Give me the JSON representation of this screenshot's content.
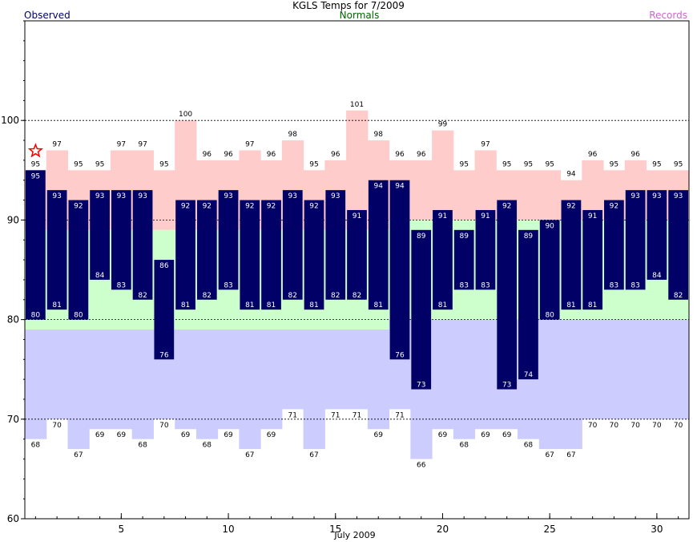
{
  "header": {
    "title": "KGLS Temps for 7/2009",
    "legend_observed": "Observed",
    "legend_normals": "Normals",
    "legend_records": "Records"
  },
  "colors": {
    "observed": "#000066",
    "normals": "#006600",
    "records": "#cc66cc",
    "record_band": "#ffcccc",
    "normal_band": "#ccffcc",
    "record_low_band": "#ccccff",
    "star": "#ff0000"
  },
  "chart_data": {
    "type": "bar",
    "title": "KGLS Temps for 7/2009",
    "xlabel": "July 2009",
    "ylabel": "",
    "ylim": [
      60,
      110
    ],
    "y_ticks": [
      60,
      70,
      80,
      90,
      100
    ],
    "x_ticks": [
      5,
      10,
      15,
      20,
      25,
      30
    ],
    "grid_dashed_at": [
      70,
      80,
      90,
      100
    ],
    "days": [
      1,
      2,
      3,
      4,
      5,
      6,
      7,
      8,
      9,
      10,
      11,
      12,
      13,
      14,
      15,
      16,
      17,
      18,
      19,
      20,
      21,
      22,
      23,
      24,
      25,
      26,
      27,
      28,
      29,
      30,
      31
    ],
    "series": [
      {
        "name": "Observed",
        "high": [
          95,
          93,
          92,
          93,
          93,
          93,
          86,
          92,
          92,
          93,
          92,
          92,
          93,
          92,
          93,
          91,
          94,
          94,
          89,
          91,
          89,
          91,
          92,
          89,
          90,
          92,
          91,
          92,
          93,
          93,
          93
        ],
        "low": [
          80,
          81,
          80,
          84,
          83,
          82,
          76,
          81,
          82,
          83,
          81,
          81,
          82,
          81,
          82,
          82,
          81,
          76,
          73,
          81,
          83,
          83,
          73,
          74,
          80,
          81,
          81,
          83,
          83,
          84,
          82
        ]
      },
      {
        "name": "Normals",
        "high": [
          89,
          89,
          89,
          89,
          89,
          89,
          89,
          89,
          89,
          89,
          89,
          89,
          89,
          89,
          89,
          89,
          89,
          90,
          90,
          90,
          90,
          90,
          90,
          90,
          90,
          90,
          90,
          90,
          90,
          90,
          90
        ],
        "low": [
          79,
          79,
          79,
          79,
          79,
          79,
          79,
          79,
          79,
          79,
          79,
          79,
          79,
          79,
          79,
          79,
          79,
          80,
          80,
          80,
          80,
          80,
          80,
          80,
          80,
          80,
          80,
          80,
          80,
          80,
          80
        ]
      },
      {
        "name": "Records",
        "high": [
          95,
          97,
          95,
          95,
          97,
          97,
          95,
          100,
          96,
          96,
          97,
          96,
          98,
          95,
          96,
          101,
          98,
          96,
          96,
          99,
          95,
          97,
          95,
          95,
          95,
          94,
          96,
          95,
          96,
          95,
          95
        ],
        "low": [
          68,
          70,
          67,
          69,
          69,
          68,
          70,
          69,
          68,
          69,
          67,
          69,
          71,
          67,
          71,
          71,
          69,
          71,
          66,
          69,
          68,
          69,
          69,
          68,
          67,
          67,
          70,
          70,
          70,
          70,
          70
        ]
      }
    ],
    "record_marker_day": 1
  }
}
